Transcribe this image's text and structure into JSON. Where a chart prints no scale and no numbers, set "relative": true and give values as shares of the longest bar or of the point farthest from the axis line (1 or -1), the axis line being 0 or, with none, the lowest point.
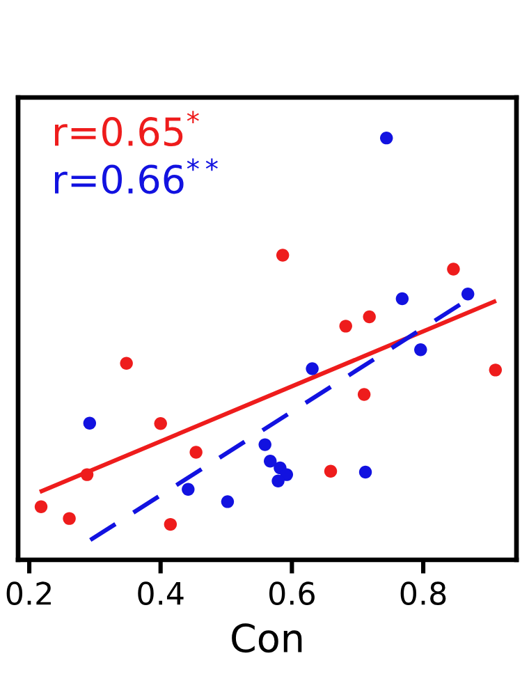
{
  "chart_data": {
    "type": "scatter",
    "xlabel": "Con",
    "relative": true,
    "tick_labels": "x",
    "xlim": [
      0.183,
      0.942
    ],
    "xticks": [
      0.2,
      0.4,
      0.6,
      0.8
    ],
    "annotations": [
      "r=0.65$^{*}$",
      "r=0.66$^{**}$"
    ],
    "series": [
      {
        "color": "#ee1c1c",
        "marker": "circle",
        "x": [
          0.218,
          0.261,
          0.288,
          0.348,
          0.4,
          0.415,
          0.454,
          0.586,
          0.659,
          0.682,
          0.71,
          0.718,
          0.846,
          0.91
        ],
        "values": [
          0.126,
          0.098,
          0.202,
          0.466,
          0.323,
          0.084,
          0.255,
          0.722,
          0.21,
          0.554,
          0.392,
          0.576,
          0.689,
          0.45
        ]
      },
      {
        "color": "#1212e0",
        "marker": "circle",
        "x": [
          0.292,
          0.442,
          0.502,
          0.559,
          0.567,
          0.582,
          0.592,
          0.579,
          0.631,
          0.712,
          0.744,
          0.768,
          0.796,
          0.868
        ],
        "values": [
          0.324,
          0.167,
          0.138,
          0.273,
          0.234,
          0.218,
          0.202,
          0.187,
          0.453,
          0.208,
          1.0,
          0.619,
          0.498,
          0.63
        ]
      },
      {
        "type": "line",
        "color": "#ee1c1c",
        "marker": "none",
        "line_style": "solid",
        "x": [
          0.219,
          0.908
        ],
        "values": [
          0.163,
          0.612
        ]
      },
      {
        "type": "line",
        "color": "#1212e0",
        "marker": "none",
        "line_style": "dashed",
        "x": [
          0.293,
          0.868
        ],
        "values": [
          0.047,
          0.617
        ]
      }
    ]
  }
}
